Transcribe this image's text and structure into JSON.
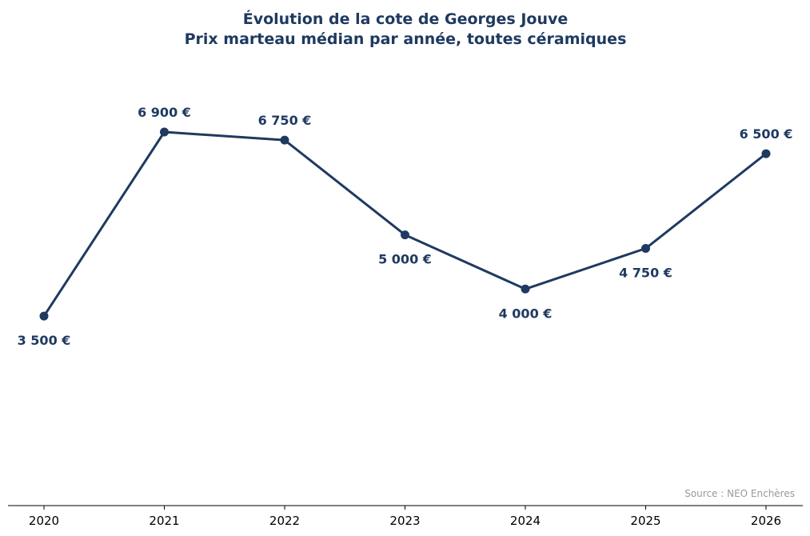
{
  "chart_data": {
    "type": "line",
    "title": "Évolution de la cote de Georges Jouve",
    "subtitle": "Prix marteau médian par année, toutes céramiques",
    "x": [
      "2020",
      "2021",
      "2022",
      "2023",
      "2024",
      "2025",
      "2026"
    ],
    "values": [
      3500,
      6900,
      6750,
      5000,
      4000,
      4750,
      6500
    ],
    "data_labels": [
      "3 500 €",
      "6 900 €",
      "6 750 €",
      "5 000 €",
      "4 000 €",
      "4 750 €",
      "6 500 €"
    ],
    "label_positions": [
      "below",
      "above",
      "above",
      "below",
      "below",
      "below",
      "above"
    ],
    "xlabel": "",
    "ylabel": "",
    "ylim": [
      0,
      8500
    ],
    "grid": false,
    "y_axis_visible": false,
    "line_color": "#1f3a60",
    "source": "Source : NEO Enchères"
  }
}
